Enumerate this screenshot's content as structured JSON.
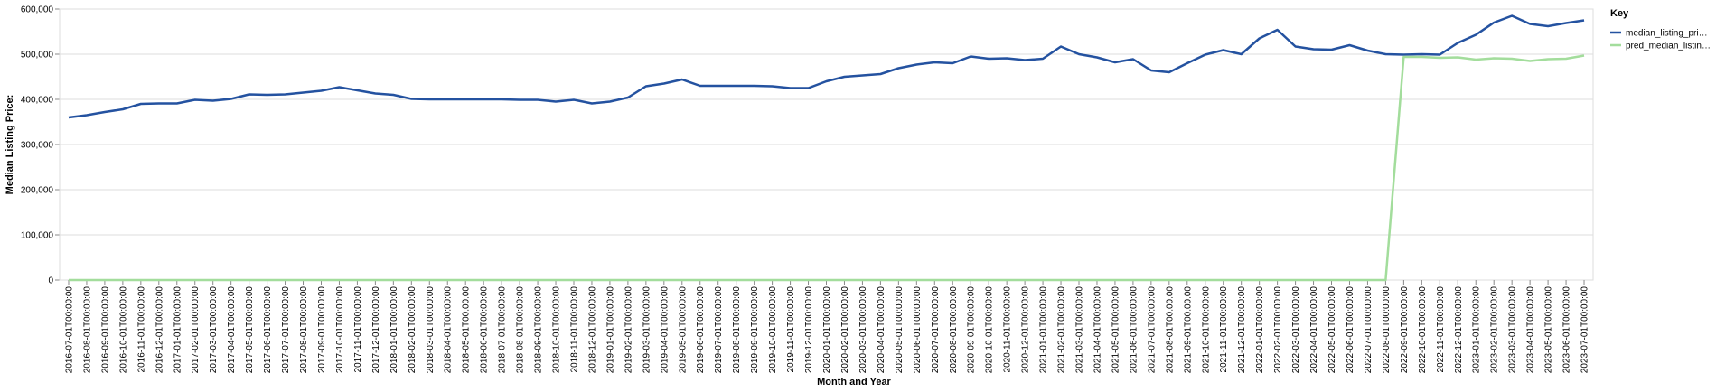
{
  "chart_data": {
    "type": "line",
    "x_label": "Month and Year",
    "y_label": "Median Listing Price:",
    "legend_title": "Key",
    "legend_position": "right",
    "grid": true,
    "x": [
      "2016-07-01T00:00:00",
      "2016-08-01T00:00:00",
      "2016-09-01T00:00:00",
      "2016-10-01T00:00:00",
      "2016-11-01T00:00:00",
      "2016-12-01T00:00:00",
      "2017-01-01T00:00:00",
      "2017-02-01T00:00:00",
      "2017-03-01T00:00:00",
      "2017-04-01T00:00:00",
      "2017-05-01T00:00:00",
      "2017-06-01T00:00:00",
      "2017-07-01T00:00:00",
      "2017-08-01T00:00:00",
      "2017-09-01T00:00:00",
      "2017-10-01T00:00:00",
      "2017-11-01T00:00:00",
      "2017-12-01T00:00:00",
      "2018-01-01T00:00:00",
      "2018-02-01T00:00:00",
      "2018-03-01T00:00:00",
      "2018-04-01T00:00:00",
      "2018-05-01T00:00:00",
      "2018-06-01T00:00:00",
      "2018-07-01T00:00:00",
      "2018-08-01T00:00:00",
      "2018-09-01T00:00:00",
      "2018-10-01T00:00:00",
      "2018-11-01T00:00:00",
      "2018-12-01T00:00:00",
      "2019-01-01T00:00:00",
      "2019-02-01T00:00:00",
      "2019-03-01T00:00:00",
      "2019-04-01T00:00:00",
      "2019-05-01T00:00:00",
      "2019-06-01T00:00:00",
      "2019-07-01T00:00:00",
      "2019-08-01T00:00:00",
      "2019-09-01T00:00:00",
      "2019-10-01T00:00:00",
      "2019-11-01T00:00:00",
      "2019-12-01T00:00:00",
      "2020-01-01T00:00:00",
      "2020-02-01T00:00:00",
      "2020-03-01T00:00:00",
      "2020-04-01T00:00:00",
      "2020-05-01T00:00:00",
      "2020-06-01T00:00:00",
      "2020-07-01T00:00:00",
      "2020-08-01T00:00:00",
      "2020-09-01T00:00:00",
      "2020-10-01T00:00:00",
      "2020-11-01T00:00:00",
      "2020-12-01T00:00:00",
      "2021-01-01T00:00:00",
      "2021-02-01T00:00:00",
      "2021-03-01T00:00:00",
      "2021-04-01T00:00:00",
      "2021-05-01T00:00:00",
      "2021-06-01T00:00:00",
      "2021-07-01T00:00:00",
      "2021-08-01T00:00:00",
      "2021-09-01T00:00:00",
      "2021-10-01T00:00:00",
      "2021-11-01T00:00:00",
      "2021-12-01T00:00:00",
      "2022-01-01T00:00:00",
      "2022-02-01T00:00:00",
      "2022-03-01T00:00:00",
      "2022-04-01T00:00:00",
      "2022-05-01T00:00:00",
      "2022-06-01T00:00:00",
      "2022-07-01T00:00:00",
      "2022-08-01T00:00:00",
      "2022-09-01T00:00:00",
      "2022-10-01T00:00:00",
      "2022-11-01T00:00:00",
      "2022-12-01T00:00:00",
      "2023-01-01T00:00:00",
      "2023-02-01T00:00:00",
      "2023-03-01T00:00:00",
      "2023-04-01T00:00:00",
      "2023-05-01T00:00:00",
      "2023-06-01T00:00:00",
      "2023-07-01T00:00:00"
    ],
    "series": [
      {
        "name": "median_listing_pri…",
        "color": "#2452a0",
        "values": [
          360000,
          365000,
          372000,
          378000,
          390000,
          391000,
          391000,
          399000,
          397000,
          401000,
          411000,
          410000,
          411000,
          415000,
          419000,
          427000,
          420000,
          413000,
          410000,
          401000,
          400000,
          400000,
          400000,
          400000,
          400000,
          399000,
          399000,
          395000,
          399000,
          391000,
          395000,
          404000,
          429000,
          435000,
          444000,
          430000,
          430000,
          430000,
          430000,
          429000,
          425000,
          425000,
          440000,
          450000,
          453000,
          456000,
          469000,
          477000,
          482000,
          480000,
          495000,
          490000,
          491000,
          487000,
          490000,
          517000,
          500000,
          493000,
          482000,
          489000,
          464000,
          460000,
          480000,
          499000,
          509000,
          500000,
          535000,
          554000,
          517000,
          511000,
          510000,
          520000,
          508000,
          500000,
          499000,
          500000,
          499000,
          525000,
          543000,
          570000,
          585000,
          567000,
          562000,
          569000,
          575000
        ]
      },
      {
        "name": "pred_median_listin…",
        "color": "#a3dd9c",
        "values": [
          0,
          0,
          0,
          0,
          0,
          0,
          0,
          0,
          0,
          0,
          0,
          0,
          0,
          0,
          0,
          0,
          0,
          0,
          0,
          0,
          0,
          0,
          0,
          0,
          0,
          0,
          0,
          0,
          0,
          0,
          0,
          0,
          0,
          0,
          0,
          0,
          0,
          0,
          0,
          0,
          0,
          0,
          0,
          0,
          0,
          0,
          0,
          0,
          0,
          0,
          0,
          0,
          0,
          0,
          0,
          0,
          0,
          0,
          0,
          0,
          0,
          0,
          0,
          0,
          0,
          0,
          0,
          0,
          0,
          0,
          0,
          0,
          0,
          0,
          494000,
          494000,
          492000,
          493000,
          488000,
          491000,
          490000,
          485000,
          489000,
          490000,
          497000
        ]
      }
    ],
    "ylim": [
      0,
      600000
    ],
    "yticks": [
      {
        "value": 0,
        "label": "0"
      },
      {
        "value": 100000,
        "label": "100,000"
      },
      {
        "value": 200000,
        "label": "200,000"
      },
      {
        "value": 300000,
        "label": "300,000"
      },
      {
        "value": 400000,
        "label": "400,000"
      },
      {
        "value": 500000,
        "label": "500,000"
      },
      {
        "value": 600000,
        "label": "600,000"
      }
    ]
  }
}
